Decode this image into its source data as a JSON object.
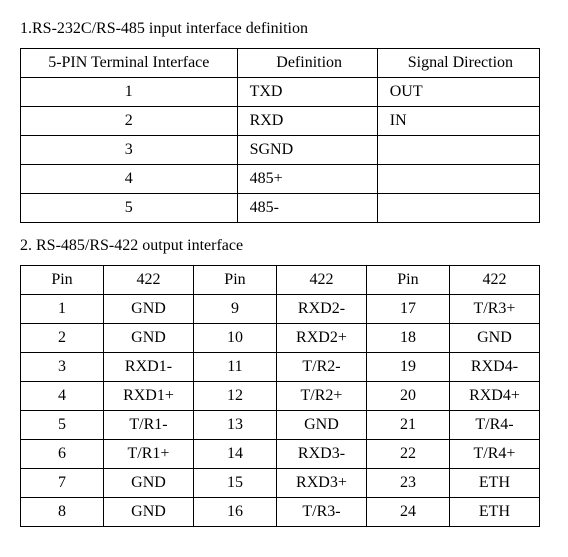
{
  "section1": {
    "title": "1.RS-232C/RS-485 input interface definition",
    "headers": [
      "5-PIN Terminal Interface",
      "Definition",
      "Signal Direction"
    ],
    "rows": [
      [
        "1",
        "TXD",
        "OUT"
      ],
      [
        "2",
        "RXD",
        "IN"
      ],
      [
        "3",
        "SGND",
        ""
      ],
      [
        "4",
        "485+",
        ""
      ],
      [
        "5",
        "485-",
        ""
      ]
    ]
  },
  "section2": {
    "title": "2. RS-485/RS-422 output interface",
    "headers": [
      "Pin",
      "422",
      "Pin",
      "422",
      "Pin",
      "422"
    ],
    "rows": [
      [
        "1",
        "GND",
        "9",
        "RXD2-",
        "17",
        "T/R3+"
      ],
      [
        "2",
        "GND",
        "10",
        "RXD2+",
        "18",
        "GND"
      ],
      [
        "3",
        "RXD1-",
        "11",
        "T/R2-",
        "19",
        "RXD4-"
      ],
      [
        "4",
        "RXD1+",
        "12",
        "T/R2+",
        "20",
        "RXD4+"
      ],
      [
        "5",
        "T/R1-",
        "13",
        "GND",
        "21",
        "T/R4-"
      ],
      [
        "6",
        "T/R1+",
        "14",
        "RXD3-",
        "22",
        "T/R4+"
      ],
      [
        "7",
        "GND",
        "15",
        "RXD3+",
        "23",
        "ETH"
      ],
      [
        "8",
        "GND",
        "16",
        "T/R3-",
        "24",
        "ETH"
      ]
    ]
  },
  "style": {
    "font_family": "Times New Roman",
    "font_size_pt": 12,
    "border_color": "#000000",
    "background": "#ffffff",
    "text_color": "#000000"
  }
}
